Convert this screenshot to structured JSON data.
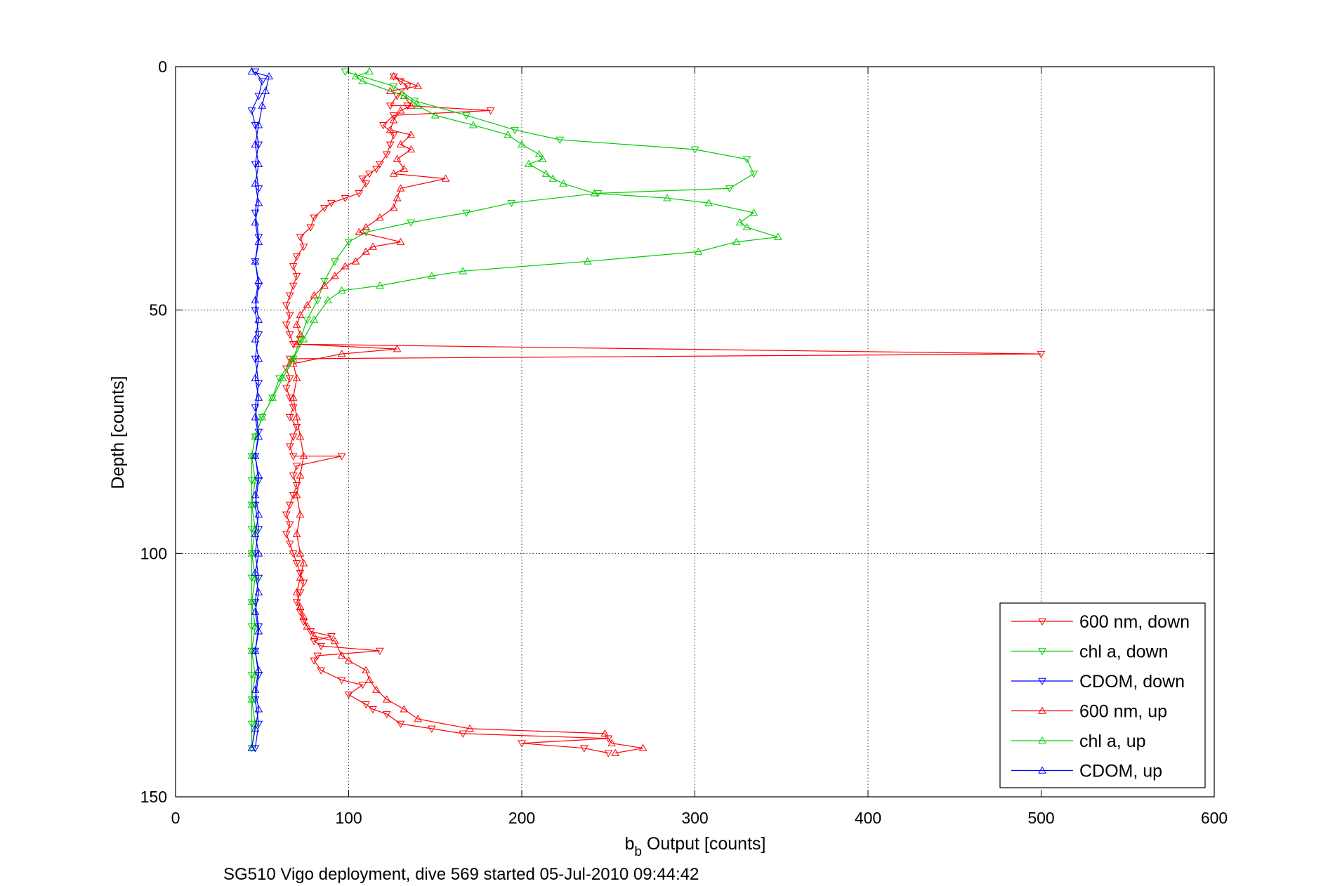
{
  "chart_data": {
    "type": "line",
    "title": "",
    "caption": "SG510 Vigo deployment, dive 569 started 05-Jul-2010 09:44:42",
    "xlabel_main": "b",
    "xlabel_sub": "b",
    "xlabel_rest": " Output [counts]",
    "ylabel": "Depth [counts]",
    "xlim": [
      0,
      600
    ],
    "ylim": [
      0,
      150
    ],
    "y_reversed": true,
    "xticks": [
      0,
      100,
      200,
      300,
      400,
      500,
      600
    ],
    "yticks": [
      0,
      50,
      100,
      150
    ],
    "grid": true,
    "legend_position": "bottom-right",
    "series": [
      {
        "name": "600 nm, down",
        "color": "#ff0000",
        "marker": "triangle-down",
        "points": [
          [
            126,
            2
          ],
          [
            130,
            3
          ],
          [
            134,
            4
          ],
          [
            128,
            6
          ],
          [
            124,
            8
          ],
          [
            134,
            8
          ],
          [
            182,
            9
          ],
          [
            126,
            10
          ],
          [
            120,
            12
          ],
          [
            126,
            14
          ],
          [
            124,
            16
          ],
          [
            122,
            18
          ],
          [
            118,
            20
          ],
          [
            116,
            21
          ],
          [
            112,
            22
          ],
          [
            108,
            23
          ],
          [
            110,
            24
          ],
          [
            106,
            26
          ],
          [
            98,
            27
          ],
          [
            90,
            28
          ],
          [
            86,
            29
          ],
          [
            80,
            31
          ],
          [
            78,
            33
          ],
          [
            72,
            35
          ],
          [
            74,
            37
          ],
          [
            70,
            39
          ],
          [
            68,
            41
          ],
          [
            70,
            43
          ],
          [
            68,
            45
          ],
          [
            66,
            47
          ],
          [
            64,
            49
          ],
          [
            66,
            51
          ],
          [
            64,
            53
          ],
          [
            66,
            55
          ],
          [
            68,
            57
          ],
          [
            500,
            59
          ],
          [
            66,
            60
          ],
          [
            64,
            62
          ],
          [
            66,
            64
          ],
          [
            64,
            66
          ],
          [
            66,
            68
          ],
          [
            68,
            70
          ],
          [
            66,
            72
          ],
          [
            70,
            74
          ],
          [
            68,
            76
          ],
          [
            66,
            78
          ],
          [
            68,
            80
          ],
          [
            96,
            80
          ],
          [
            70,
            82
          ],
          [
            68,
            84
          ],
          [
            70,
            86
          ],
          [
            68,
            88
          ],
          [
            66,
            90
          ],
          [
            64,
            92
          ],
          [
            66,
            94
          ],
          [
            64,
            96
          ],
          [
            66,
            98
          ],
          [
            68,
            100
          ],
          [
            70,
            102
          ],
          [
            72,
            104
          ],
          [
            74,
            106
          ],
          [
            72,
            108
          ],
          [
            70,
            110
          ],
          [
            72,
            112
          ],
          [
            74,
            114
          ],
          [
            78,
            116
          ],
          [
            90,
            117
          ],
          [
            80,
            118
          ],
          [
            84,
            119
          ],
          [
            118,
            120
          ],
          [
            82,
            121
          ],
          [
            80,
            122
          ],
          [
            84,
            124
          ],
          [
            96,
            126
          ],
          [
            108,
            127
          ],
          [
            100,
            129
          ],
          [
            110,
            131
          ],
          [
            114,
            132
          ],
          [
            122,
            133
          ],
          [
            130,
            135
          ],
          [
            148,
            136
          ],
          [
            166,
            137
          ],
          [
            250,
            138
          ],
          [
            200,
            139
          ],
          [
            236,
            140
          ],
          [
            250,
            141
          ]
        ]
      },
      {
        "name": "chl a, down",
        "color": "#00cc00",
        "marker": "triangle-down",
        "points": [
          [
            98,
            1
          ],
          [
            126,
            4
          ],
          [
            138,
            7
          ],
          [
            168,
            10
          ],
          [
            196,
            13
          ],
          [
            222,
            15
          ],
          [
            300,
            17
          ],
          [
            330,
            19
          ],
          [
            334,
            22
          ],
          [
            320,
            25
          ],
          [
            244,
            26
          ],
          [
            194,
            28
          ],
          [
            168,
            30
          ],
          [
            136,
            32
          ],
          [
            110,
            34
          ],
          [
            100,
            36
          ],
          [
            92,
            40
          ],
          [
            86,
            44
          ],
          [
            82,
            48
          ],
          [
            76,
            52
          ],
          [
            72,
            56
          ],
          [
            68,
            60
          ],
          [
            60,
            64
          ],
          [
            56,
            68
          ],
          [
            50,
            72
          ],
          [
            46,
            76
          ],
          [
            44,
            80
          ],
          [
            44,
            85
          ],
          [
            44,
            90
          ],
          [
            44,
            95
          ],
          [
            44,
            100
          ],
          [
            44,
            105
          ],
          [
            44,
            110
          ],
          [
            44,
            115
          ],
          [
            44,
            120
          ],
          [
            44,
            125
          ],
          [
            44,
            130
          ],
          [
            44,
            135
          ],
          [
            44,
            140
          ]
        ]
      },
      {
        "name": "CDOM, down",
        "color": "#0000ff",
        "marker": "triangle-down",
        "points": [
          [
            46,
            1
          ],
          [
            50,
            3
          ],
          [
            48,
            6
          ],
          [
            44,
            9
          ],
          [
            46,
            12
          ],
          [
            48,
            16
          ],
          [
            46,
            20
          ],
          [
            48,
            25
          ],
          [
            46,
            30
          ],
          [
            48,
            35
          ],
          [
            46,
            40
          ],
          [
            48,
            45
          ],
          [
            46,
            50
          ],
          [
            48,
            55
          ],
          [
            46,
            60
          ],
          [
            48,
            65
          ],
          [
            46,
            70
          ],
          [
            48,
            75
          ],
          [
            46,
            80
          ],
          [
            48,
            85
          ],
          [
            46,
            90
          ],
          [
            48,
            95
          ],
          [
            46,
            100
          ],
          [
            48,
            105
          ],
          [
            46,
            110
          ],
          [
            48,
            115
          ],
          [
            46,
            120
          ],
          [
            48,
            125
          ],
          [
            46,
            130
          ],
          [
            48,
            135
          ],
          [
            46,
            140
          ]
        ]
      },
      {
        "name": "600 nm, up",
        "color": "#ff0000",
        "marker": "triangle-up",
        "points": [
          [
            254,
            141
          ],
          [
            270,
            140
          ],
          [
            252,
            139
          ],
          [
            248,
            137
          ],
          [
            170,
            136
          ],
          [
            140,
            134
          ],
          [
            132,
            132
          ],
          [
            122,
            130
          ],
          [
            116,
            128
          ],
          [
            112,
            126
          ],
          [
            110,
            124
          ],
          [
            100,
            122
          ],
          [
            96,
            121
          ],
          [
            92,
            118
          ],
          [
            80,
            117
          ],
          [
            76,
            115
          ],
          [
            74,
            113
          ],
          [
            72,
            111
          ],
          [
            70,
            108
          ],
          [
            72,
            105
          ],
          [
            74,
            102
          ],
          [
            72,
            100
          ],
          [
            70,
            96
          ],
          [
            72,
            92
          ],
          [
            70,
            88
          ],
          [
            72,
            84
          ],
          [
            74,
            80
          ],
          [
            72,
            76
          ],
          [
            70,
            72
          ],
          [
            68,
            68
          ],
          [
            70,
            64
          ],
          [
            68,
            61
          ],
          [
            96,
            59
          ],
          [
            128,
            58
          ],
          [
            70,
            57
          ],
          [
            72,
            55
          ],
          [
            70,
            53
          ],
          [
            72,
            51
          ],
          [
            76,
            49
          ],
          [
            80,
            47
          ],
          [
            86,
            45
          ],
          [
            92,
            43
          ],
          [
            98,
            41
          ],
          [
            104,
            40
          ],
          [
            110,
            38
          ],
          [
            114,
            37
          ],
          [
            130,
            36
          ],
          [
            106,
            34
          ],
          [
            110,
            33
          ],
          [
            118,
            31
          ],
          [
            126,
            29
          ],
          [
            128,
            27
          ],
          [
            130,
            25
          ],
          [
            156,
            23
          ],
          [
            126,
            22
          ],
          [
            132,
            21
          ],
          [
            128,
            19
          ],
          [
            136,
            17
          ],
          [
            130,
            16
          ],
          [
            136,
            14
          ],
          [
            124,
            13
          ],
          [
            126,
            11
          ],
          [
            130,
            9
          ],
          [
            136,
            8
          ],
          [
            132,
            6
          ],
          [
            124,
            5
          ],
          [
            140,
            4
          ],
          [
            126,
            2
          ]
        ]
      },
      {
        "name": "chl a, up",
        "color": "#00cc00",
        "marker": "triangle-up",
        "points": [
          [
            44,
            140
          ],
          [
            46,
            135
          ],
          [
            44,
            130
          ],
          [
            46,
            125
          ],
          [
            44,
            120
          ],
          [
            46,
            115
          ],
          [
            44,
            110
          ],
          [
            46,
            105
          ],
          [
            44,
            100
          ],
          [
            46,
            95
          ],
          [
            44,
            90
          ],
          [
            46,
            85
          ],
          [
            44,
            80
          ],
          [
            46,
            76
          ],
          [
            50,
            72
          ],
          [
            56,
            68
          ],
          [
            62,
            64
          ],
          [
            68,
            60
          ],
          [
            74,
            56
          ],
          [
            80,
            52
          ],
          [
            88,
            48
          ],
          [
            96,
            46
          ],
          [
            118,
            45
          ],
          [
            148,
            43
          ],
          [
            166,
            42
          ],
          [
            238,
            40
          ],
          [
            302,
            38
          ],
          [
            324,
            36
          ],
          [
            348,
            35
          ],
          [
            330,
            33
          ],
          [
            326,
            32
          ],
          [
            334,
            30
          ],
          [
            308,
            28
          ],
          [
            284,
            27
          ],
          [
            242,
            26
          ],
          [
            224,
            24
          ],
          [
            218,
            23
          ],
          [
            214,
            22
          ],
          [
            204,
            20
          ],
          [
            212,
            19
          ],
          [
            210,
            18
          ],
          [
            200,
            16
          ],
          [
            192,
            14
          ],
          [
            172,
            12
          ],
          [
            150,
            10
          ],
          [
            140,
            8
          ],
          [
            132,
            6
          ],
          [
            108,
            3
          ],
          [
            104,
            2
          ],
          [
            112,
            1
          ]
        ]
      },
      {
        "name": "CDOM, up",
        "color": "#0000ff",
        "marker": "triangle-up",
        "points": [
          [
            44,
            140
          ],
          [
            46,
            136
          ],
          [
            48,
            132
          ],
          [
            46,
            128
          ],
          [
            48,
            124
          ],
          [
            46,
            120
          ],
          [
            48,
            116
          ],
          [
            46,
            112
          ],
          [
            48,
            108
          ],
          [
            46,
            104
          ],
          [
            48,
            100
          ],
          [
            46,
            96
          ],
          [
            48,
            92
          ],
          [
            46,
            88
          ],
          [
            48,
            84
          ],
          [
            46,
            80
          ],
          [
            48,
            76
          ],
          [
            46,
            72
          ],
          [
            48,
            68
          ],
          [
            46,
            64
          ],
          [
            48,
            60
          ],
          [
            46,
            56
          ],
          [
            48,
            52
          ],
          [
            46,
            48
          ],
          [
            48,
            44
          ],
          [
            46,
            40
          ],
          [
            48,
            36
          ],
          [
            46,
            32
          ],
          [
            48,
            28
          ],
          [
            46,
            24
          ],
          [
            48,
            20
          ],
          [
            46,
            16
          ],
          [
            48,
            12
          ],
          [
            50,
            8
          ],
          [
            52,
            5
          ],
          [
            54,
            2
          ],
          [
            44,
            1
          ]
        ]
      }
    ]
  }
}
